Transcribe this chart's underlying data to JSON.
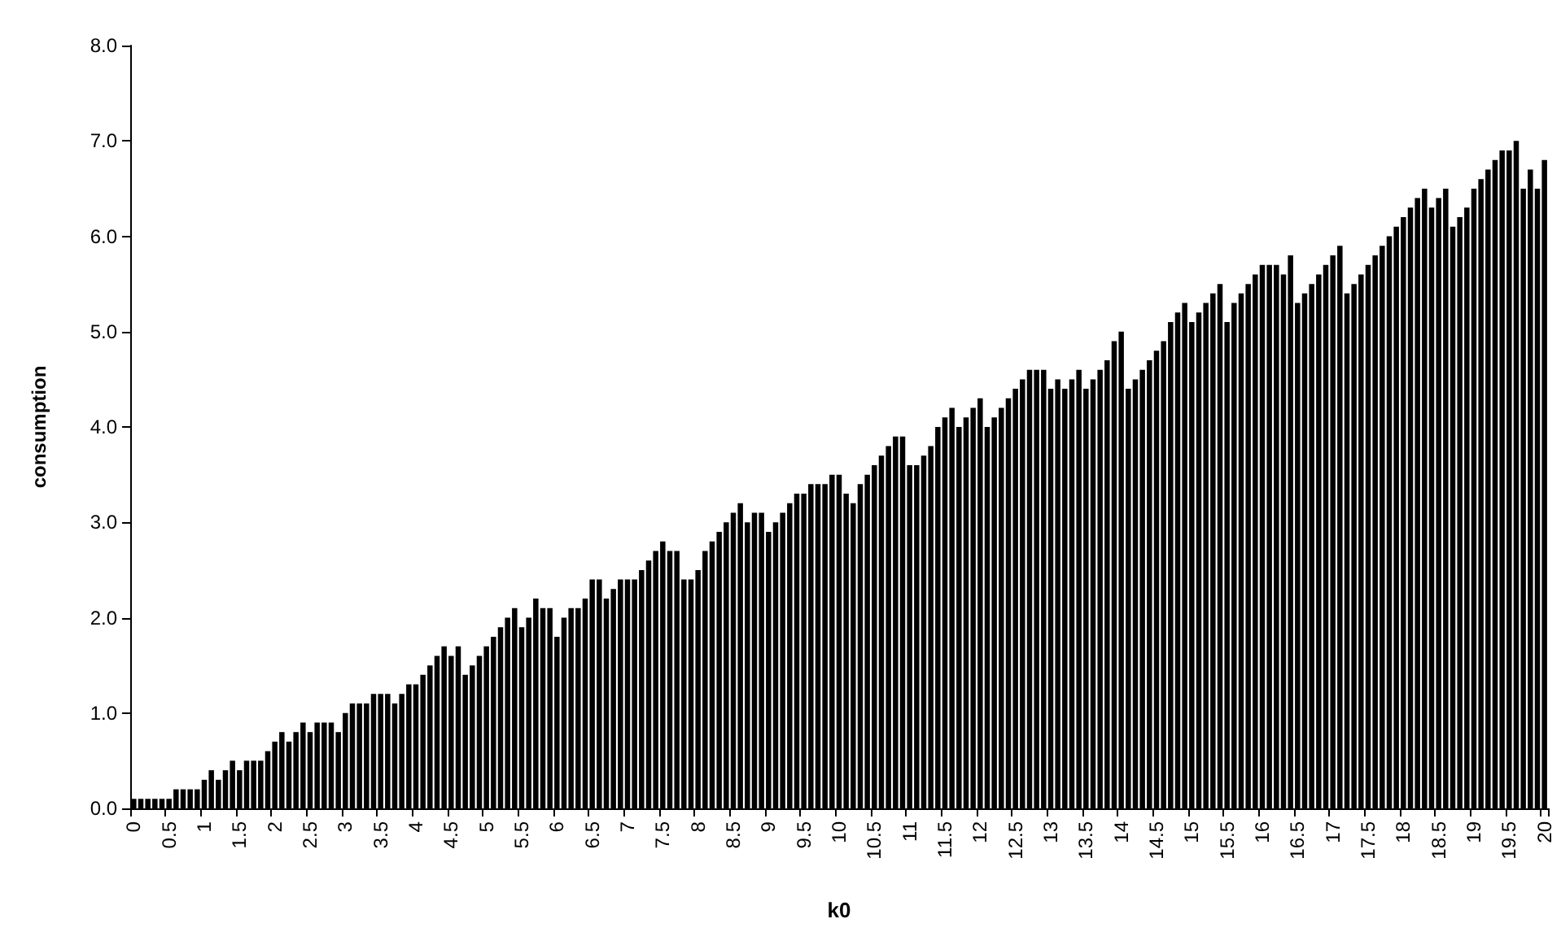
{
  "chart_data": {
    "type": "bar",
    "xlabel": "k0",
    "ylabel": "consumption",
    "color": "#000000",
    "grid": false,
    "categories": [
      "0",
      null,
      null,
      null,
      null,
      "0.5",
      null,
      null,
      null,
      null,
      "1",
      null,
      null,
      null,
      null,
      "1.5",
      null,
      null,
      null,
      null,
      "2",
      null,
      null,
      null,
      null,
      "2.5",
      null,
      null,
      null,
      null,
      "3",
      null,
      null,
      null,
      null,
      "3.5",
      null,
      null,
      null,
      null,
      "4",
      null,
      null,
      null,
      null,
      "4.5",
      null,
      null,
      null,
      null,
      "5",
      null,
      null,
      null,
      null,
      "5.5",
      null,
      null,
      null,
      null,
      "6",
      null,
      null,
      null,
      null,
      "6.5",
      null,
      null,
      null,
      null,
      "7",
      null,
      null,
      null,
      null,
      "7.5",
      null,
      null,
      null,
      null,
      "8",
      null,
      null,
      null,
      null,
      "8.5",
      null,
      null,
      null,
      null,
      "9",
      null,
      null,
      null,
      null,
      "9.5",
      null,
      null,
      null,
      null,
      "10",
      null,
      null,
      null,
      null,
      "10.5",
      null,
      null,
      null,
      null,
      "11",
      null,
      null,
      null,
      null,
      "11.5",
      null,
      null,
      null,
      null,
      "12",
      null,
      null,
      null,
      null,
      "12.5",
      null,
      null,
      null,
      null,
      "13",
      null,
      null,
      null,
      null,
      "13.5",
      null,
      null,
      null,
      null,
      "14",
      null,
      null,
      null,
      null,
      "14.5",
      null,
      null,
      null,
      null,
      "15",
      null,
      null,
      null,
      null,
      "15.5",
      null,
      null,
      null,
      null,
      "16",
      null,
      null,
      null,
      null,
      "16.5",
      null,
      null,
      null,
      null,
      "17",
      null,
      null,
      null,
      null,
      "17.5",
      null,
      null,
      null,
      null,
      "18",
      null,
      null,
      null,
      null,
      "18.5",
      null,
      null,
      null,
      null,
      "19",
      null,
      null,
      null,
      null,
      "19.5",
      null,
      null,
      null,
      null,
      "20"
    ],
    "values": [
      0.1,
      0.1,
      0.1,
      0.1,
      0.1,
      0.1,
      0.2,
      0.2,
      0.2,
      0.2,
      0.3,
      0.4,
      0.3,
      0.4,
      0.5,
      0.4,
      0.5,
      0.5,
      0.5,
      0.6,
      0.7,
      0.8,
      0.7,
      0.8,
      0.9,
      0.8,
      0.9,
      0.9,
      0.9,
      0.8,
      1.0,
      1.1,
      1.1,
      1.1,
      1.2,
      1.2,
      1.2,
      1.1,
      1.2,
      1.3,
      1.3,
      1.4,
      1.5,
      1.6,
      1.7,
      1.6,
      1.7,
      1.4,
      1.5,
      1.6,
      1.7,
      1.8,
      1.9,
      2.0,
      2.1,
      1.9,
      2.0,
      2.2,
      2.1,
      2.1,
      1.8,
      2.0,
      2.1,
      2.1,
      2.2,
      2.4,
      2.4,
      2.2,
      2.3,
      2.4,
      2.4,
      2.4,
      2.5,
      2.6,
      2.7,
      2.8,
      2.7,
      2.7,
      2.4,
      2.4,
      2.5,
      2.7,
      2.8,
      2.9,
      3.0,
      3.1,
      3.2,
      3.0,
      3.1,
      3.1,
      2.9,
      3.0,
      3.1,
      3.2,
      3.3,
      3.3,
      3.4,
      3.4,
      3.4,
      3.5,
      3.5,
      3.3,
      3.2,
      3.4,
      3.5,
      3.6,
      3.7,
      3.8,
      3.9,
      3.9,
      3.6,
      3.6,
      3.7,
      3.8,
      4.0,
      4.1,
      4.2,
      4.0,
      4.1,
      4.2,
      4.3,
      4.0,
      4.1,
      4.2,
      4.3,
      4.4,
      4.5,
      4.6,
      4.6,
      4.6,
      4.4,
      4.5,
      4.4,
      4.5,
      4.6,
      4.4,
      4.5,
      4.6,
      4.7,
      4.9,
      5.0,
      4.4,
      4.5,
      4.6,
      4.7,
      4.8,
      4.9,
      5.1,
      5.2,
      5.3,
      5.1,
      5.2,
      5.3,
      5.4,
      5.5,
      5.1,
      5.3,
      5.4,
      5.5,
      5.6,
      5.7,
      5.7,
      5.7,
      5.6,
      5.8,
      5.3,
      5.4,
      5.5,
      5.6,
      5.7,
      5.8,
      5.9,
      5.4,
      5.5,
      5.6,
      5.7,
      5.8,
      5.9,
      6.0,
      6.1,
      6.2,
      6.3,
      6.4,
      6.5,
      6.3,
      6.4,
      6.5,
      6.1,
      6.2,
      6.3,
      6.5,
      6.6,
      6.7,
      6.8,
      6.9,
      6.9,
      7.0,
      6.5,
      6.7,
      6.5,
      6.8
    ],
    "ylim": [
      0,
      8
    ],
    "yticks": [
      {
        "value": 0,
        "label": "0.0"
      },
      {
        "value": 1,
        "label": "1.0"
      },
      {
        "value": 2,
        "label": "2.0"
      },
      {
        "value": 3,
        "label": "3.0"
      },
      {
        "value": 4,
        "label": "4.0"
      },
      {
        "value": 5,
        "label": "5.0"
      },
      {
        "value": 6,
        "label": "6.0"
      },
      {
        "value": 7,
        "label": "7.0"
      },
      {
        "value": 8,
        "label": "8.0"
      }
    ]
  }
}
